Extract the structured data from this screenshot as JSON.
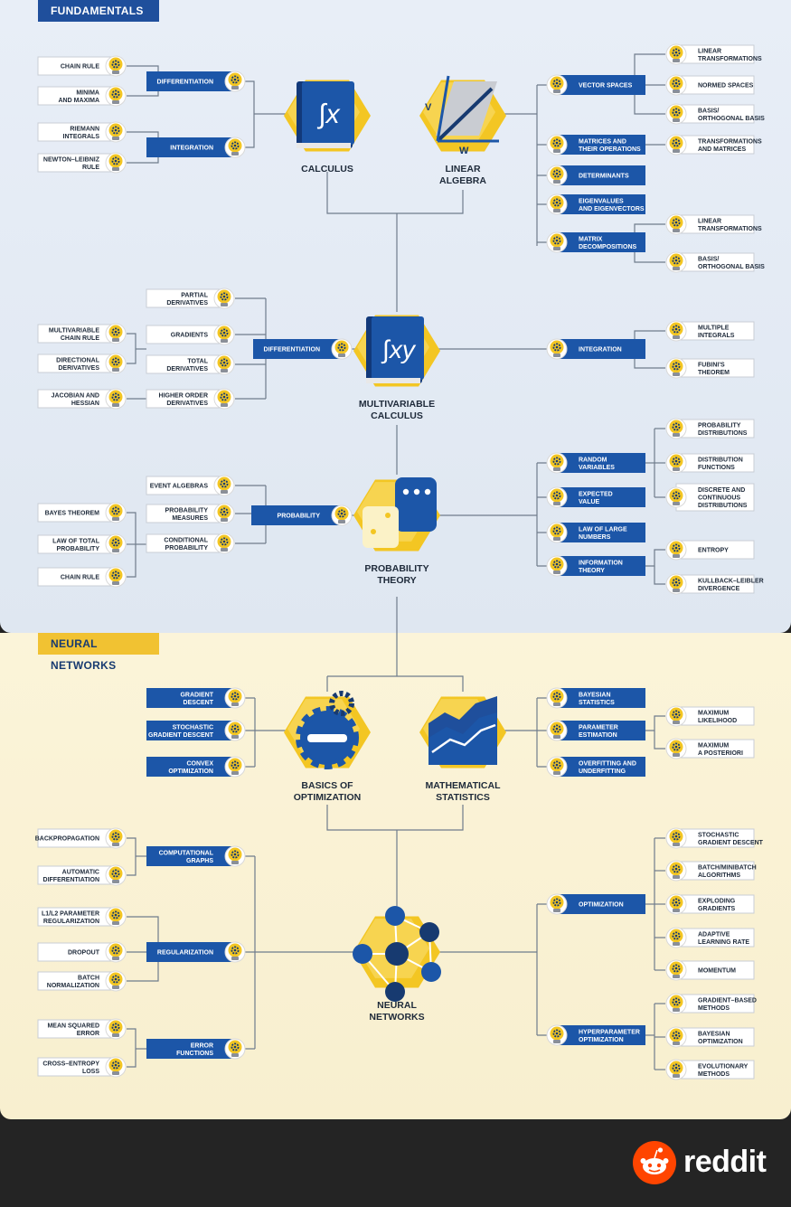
{
  "sections": {
    "fundamentals": "FUNDAMENTALS",
    "neural_networks": "NEURAL NETWORKS"
  },
  "hubs": {
    "calculus": [
      "CALCULUS"
    ],
    "linear_algebra": [
      "LINEAR",
      "ALGEBRA"
    ],
    "multivariable": [
      "MULTIVARIABLE",
      "CALCULUS"
    ],
    "probability": [
      "PROBABILITY",
      "THEORY"
    ],
    "optimization": [
      "BASICS OF",
      "OPTIMIZATION"
    ],
    "math_stats": [
      "MATHEMATICAL",
      "STATISTICS"
    ],
    "neural": [
      "NEURAL",
      "NETWORKS"
    ]
  },
  "hub_glyphs": {
    "calculus": "∫x",
    "multivariable": "∫xy",
    "la_v": "V",
    "la_w": "W"
  },
  "cat": {
    "calc_diff": [
      "DIFFERENTIATION"
    ],
    "calc_int": [
      "INTEGRATION"
    ],
    "la_vs": [
      "VECTOR SPACES"
    ],
    "la_mat": [
      "MATRICES AND",
      "THEIR OPERATIONS"
    ],
    "la_det": [
      "DETERMINANTS"
    ],
    "la_eig": [
      "EIGENVALUES",
      "AND EIGENVECTORS"
    ],
    "la_dec": [
      "MATRIX",
      "DECOMPOSITIONS"
    ],
    "mv_diff": [
      "DIFFERENTIATION"
    ],
    "mv_int": [
      "INTEGRATION"
    ],
    "prob": [
      "PROBABILITY"
    ],
    "pt_rv": [
      "RANDOM",
      "VARIABLES"
    ],
    "pt_ev": [
      "EXPECTED",
      "VALUE"
    ],
    "pt_lln": [
      "LAW OF LARGE",
      "NUMBERS"
    ],
    "pt_info": [
      "INFORMATION",
      "THEORY"
    ],
    "opt_gd": [
      "GRADIENT",
      "DESCENT"
    ],
    "opt_sgd": [
      "STOCHASTIC",
      "GRADIENT DESCENT"
    ],
    "opt_cvx": [
      "CONVEX",
      "OPTIMIZATION"
    ],
    "ms_bayes": [
      "BAYESIAN",
      "STATISTICS"
    ],
    "ms_pe": [
      "PARAMETER",
      "ESTIMATION"
    ],
    "ms_over": [
      "OVERFITTING AND",
      "UNDERFITTING"
    ],
    "nn_cg": [
      "COMPUTATIONAL",
      "GRAPHS"
    ],
    "nn_reg": [
      "REGULARIZATION"
    ],
    "nn_err": [
      "ERROR",
      "FUNCTIONS"
    ],
    "nn_opt": [
      "OPTIMIZATION"
    ],
    "nn_hyper": [
      "HYPERPARAMETER",
      "OPTIMIZATION"
    ]
  },
  "leaf": {
    "chain_rule": [
      "CHAIN RULE"
    ],
    "minima": [
      "MINIMA",
      "AND MAXIMA"
    ],
    "riemann": [
      "RIEMANN",
      "INTEGRALS"
    ],
    "newton": [
      "NEWTON–LEIBNIZ",
      "RULE"
    ],
    "lin_trans1": [
      "LINEAR",
      "TRANSFORMATIONS"
    ],
    "normed": [
      "NORMED SPACES"
    ],
    "basis1": [
      "BASIS/",
      "ORTHOGONAL BASIS"
    ],
    "trans_mat": [
      "TRANSFORMATIONS",
      "AND MATRICES"
    ],
    "lin_trans2": [
      "LINEAR",
      "TRANSFORMATIONS"
    ],
    "basis2": [
      "BASIS/",
      "ORTHOGONAL BASIS"
    ],
    "partial": [
      "PARTIAL",
      "DERIVATIVES"
    ],
    "gradients": [
      "GRADIENTS"
    ],
    "total": [
      "TOTAL",
      "DERIVATIVES"
    ],
    "higher": [
      "HIGHER ORDER",
      "DERIVATIVES"
    ],
    "mv_chain": [
      "MULTIVARIABLE",
      "CHAIN RULE"
    ],
    "directional": [
      "DIRECTIONAL",
      "DERIVATIVES"
    ],
    "jacobian": [
      "JACOBIAN AND",
      "HESSIAN"
    ],
    "multi_int": [
      "MULTIPLE",
      "INTEGRALS"
    ],
    "fubini": [
      "FUBINI'S",
      "THEOREM"
    ],
    "event_alg": [
      "EVENT ALGEBRAS"
    ],
    "prob_meas": [
      "PROBABILITY",
      "MEASURES"
    ],
    "cond_prob": [
      "CONDITIONAL",
      "PROBABILITY"
    ],
    "bayes_thm": [
      "BAYES THEOREM"
    ],
    "law_total": [
      "LAW OF TOTAL",
      "PROBABILITY"
    ],
    "chain_rule2": [
      "CHAIN RULE"
    ],
    "prob_dist": [
      "PROBABILITY",
      "DISTRIBUTIONS"
    ],
    "dist_func": [
      "DISTRIBUTION",
      "FUNCTIONS"
    ],
    "discrete": [
      "DISCRETE AND",
      "CONTINUOUS",
      "DISTRIBUTIONS"
    ],
    "entropy": [
      "ENTROPY"
    ],
    "kl": [
      "KULLBACK–LEIBLER",
      "DIVERGENCE"
    ],
    "max_lik": [
      "MAXIMUM",
      "LIKELIHOOD"
    ],
    "max_post": [
      "MAXIMUM",
      "A POSTERIORI"
    ],
    "backprop": [
      "BACKPROPAGATION"
    ],
    "autodiff": [
      "AUTOMATIC",
      "DIFFERENTIATION"
    ],
    "l1l2": [
      "L1/L2 PARAMETER",
      "REGULARIZATION"
    ],
    "dropout": [
      "DROPOUT"
    ],
    "batchnorm": [
      "BATCH",
      "NORMALIZATION"
    ],
    "mse": [
      "MEAN SQUARED",
      "ERROR"
    ],
    "ce": [
      "CROSS–ENTROPY",
      "LOSS"
    ],
    "sgd2": [
      "STOCHASTIC",
      "GRADIENT DESCENT"
    ],
    "minibatch": [
      "BATCH/MINIBATCH",
      "ALGORITHMS"
    ],
    "exploding": [
      "EXPLODING",
      "GRADIENTS"
    ],
    "adaptive": [
      "ADAPTIVE",
      "LEARNING RATE"
    ],
    "momentum": [
      "MOMENTUM"
    ],
    "grad_based": [
      "GRADIENT–BASED",
      "METHODS"
    ],
    "bayes_opt": [
      "BAYESIAN",
      "OPTIMIZATION"
    ],
    "evolutionary": [
      "EVOLUTIONARY",
      "METHODS"
    ]
  },
  "footer": {
    "brand": "reddit"
  },
  "colors": {
    "blue": "#1c56a8",
    "dark_blue": "#173a70",
    "yellow": "#f3c623",
    "line": "#6f7c8c"
  }
}
